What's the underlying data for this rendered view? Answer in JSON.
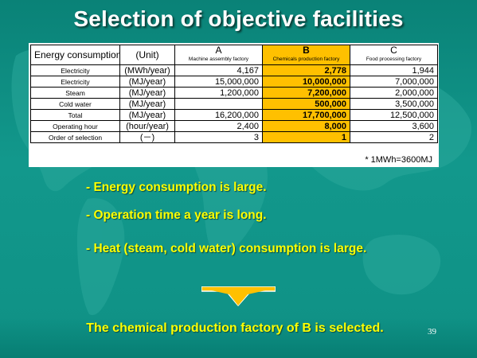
{
  "slide": {
    "title": "Selection of objective facilities",
    "page_number": "39",
    "colors": {
      "background": "#0e8c80",
      "title": "#ffffff",
      "bullet_text": "#ffff00",
      "highlight_column": "#ffc000",
      "arrow_fill": "#ffc000"
    }
  },
  "table": {
    "header": {
      "energy_consumption": "Energy consumption",
      "unit": "(Unit)",
      "facilities": [
        {
          "letter": "A",
          "name": "Machine assembly factory"
        },
        {
          "letter": "B",
          "name": "Chemicals production factory"
        },
        {
          "letter": "C",
          "name": "Food processing factory"
        }
      ]
    },
    "rows": [
      {
        "label": "Electricity",
        "unit": "(MWh/year)",
        "a": "4,167",
        "b": "2,778",
        "c": "1,944"
      },
      {
        "label": "Electricity",
        "unit": "(MJ/year)",
        "a": "15,000,000",
        "b": "10,000,000",
        "c": "7,000,000"
      },
      {
        "label": "Steam",
        "unit": "(MJ/year)",
        "a": "1,200,000",
        "b": "7,200,000",
        "c": "2,000,000"
      },
      {
        "label": "Cold water",
        "unit": "(MJ/year)",
        "a": "",
        "b": "500,000",
        "c": "3,500,000"
      },
      {
        "label": "Total",
        "unit": "(MJ/year)",
        "a": "16,200,000",
        "b": "17,700,000",
        "c": "12,500,000"
      },
      {
        "label": "Operating hour",
        "unit": "(hour/year)",
        "a": "2,400",
        "b": "8,000",
        "c": "3,600"
      },
      {
        "label": "Order of selection",
        "unit": "(－)",
        "a": "3",
        "b": "1",
        "c": "2"
      }
    ],
    "footnote": "* 1MWh=3600MJ",
    "highlighted_facility": "B"
  },
  "bullets": [
    "- Energy consumption is large.",
    "- Operation time a year is long.",
    "- Heat (steam, cold water) consumption is large."
  ],
  "conclusion": "The chemical production factory of B is selected."
}
